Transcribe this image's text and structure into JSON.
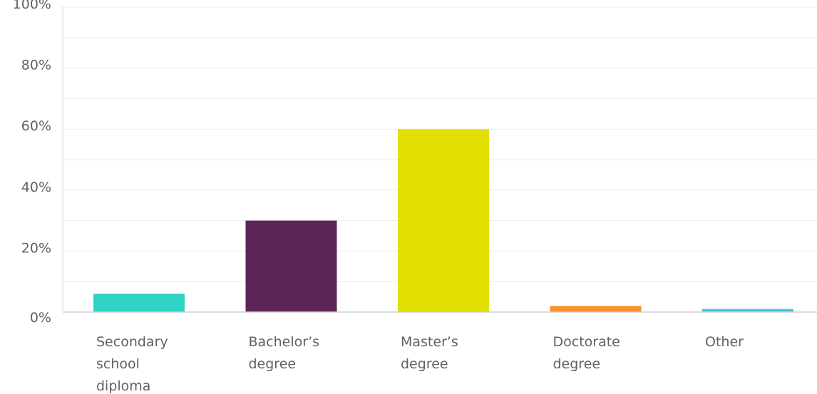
{
  "chart_data": {
    "type": "bar",
    "title": "",
    "xlabel": "",
    "ylabel": "",
    "categories": [
      [
        "Secondary",
        "school",
        "diploma"
      ],
      [
        "Bachelor’s",
        "degree"
      ],
      [
        "Master’s",
        "degree"
      ],
      [
        "Doctorate",
        "degree"
      ],
      [
        "Other"
      ]
    ],
    "values": [
      6,
      30,
      60,
      2,
      1
    ],
    "colors": [
      "#2dd4c5",
      "#5c2557",
      "#e2e000",
      "#f7922e",
      "#3ec6dd"
    ],
    "ylim": [
      0,
      100
    ],
    "yticks": [
      0,
      20,
      40,
      60,
      80,
      100
    ],
    "ytick_labels": [
      "0%",
      "20%",
      "40%",
      "60%",
      "80%",
      "100%"
    ],
    "grid": true,
    "legend": "none"
  }
}
